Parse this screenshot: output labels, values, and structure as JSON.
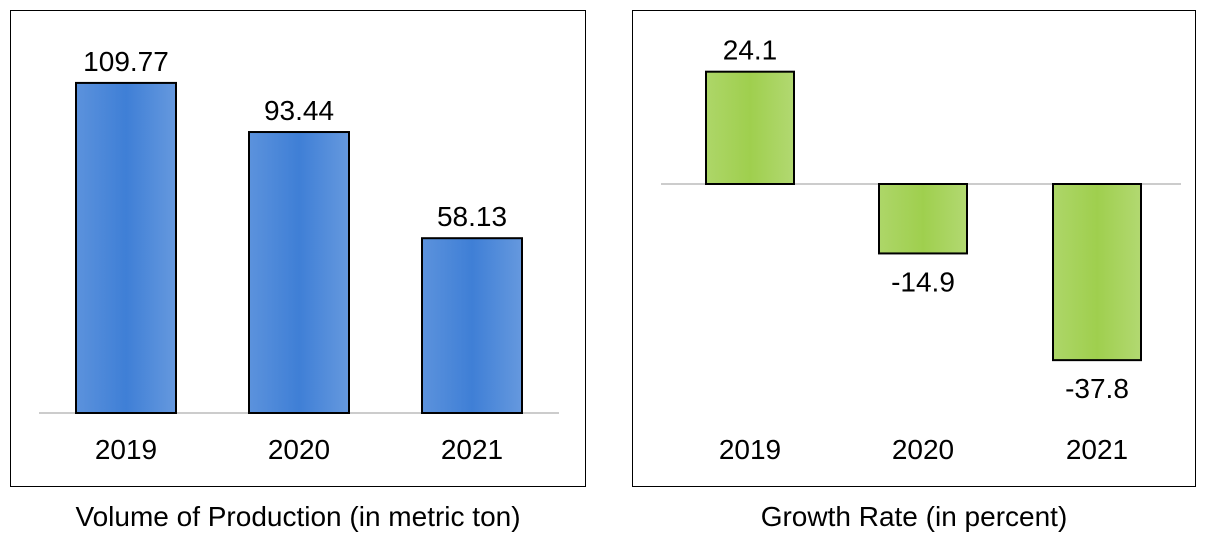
{
  "chart_data": [
    {
      "type": "bar",
      "title": "Volume of Production (in metric ton)",
      "categories": [
        "2019",
        "2020",
        "2021"
      ],
      "values": [
        109.77,
        93.44,
        58.13
      ],
      "value_labels": [
        "109.77",
        "93.44",
        "58.13"
      ],
      "ylim": [
        0,
        120
      ],
      "grid": false,
      "legend": "none",
      "colors": {
        "bar_fill": "#3f7fd6",
        "bar_stroke": "#000000",
        "baseline": "#cccccc"
      }
    },
    {
      "type": "bar",
      "title": "Growth Rate (in percent)",
      "categories": [
        "2019",
        "2020",
        "2021"
      ],
      "values": [
        24.1,
        -14.9,
        -37.8
      ],
      "value_labels": [
        "24.1",
        "-14.9",
        "-37.8"
      ],
      "ylim": [
        -40,
        30
      ],
      "grid": false,
      "legend": "none",
      "colors": {
        "bar_fill": "#9fcf4e",
        "bar_stroke": "#000000",
        "baseline": "#cccccc"
      }
    }
  ]
}
